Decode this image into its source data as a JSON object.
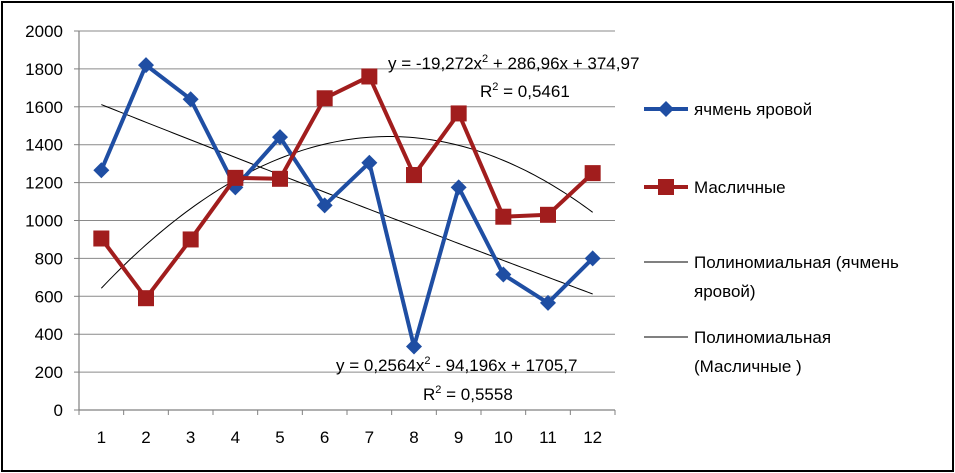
{
  "chart_data": {
    "type": "line",
    "x": [
      1,
      2,
      3,
      4,
      5,
      6,
      7,
      8,
      9,
      10,
      11,
      12
    ],
    "ylim": [
      0,
      2000
    ],
    "yticks": [
      0,
      200,
      400,
      600,
      800,
      1000,
      1200,
      1400,
      1600,
      1800,
      2000
    ],
    "grid": true,
    "legend_position": "right",
    "series": [
      {
        "name": "ячмень яровой",
        "color": "#1f4ea3",
        "marker": "diamond",
        "values": [
          1265,
          1820,
          1640,
          1175,
          1440,
          1080,
          1305,
          335,
          1175,
          715,
          565,
          800
        ]
      },
      {
        "name": "Масличные",
        "color": "#a11d1d",
        "marker": "square",
        "values": [
          905,
          590,
          900,
          1225,
          1220,
          1645,
          1760,
          1240,
          1565,
          1020,
          1030,
          1250
        ]
      }
    ],
    "trendlines": [
      {
        "legend": "Полиномиальная (ячмень яровой)",
        "legend_lines": [
          "Полиномиальная (ячмень",
          "яровой)"
        ],
        "equation": "y = 0,2564x² - 94,196x + 1705,7",
        "eq_parts": [
          "y = 0,2564x",
          "2",
          " - 94,196x + 1705,7"
        ],
        "r2_label": "R² = 0,5558",
        "r2_parts": [
          "R",
          "2",
          " = 0,5558"
        ],
        "coeffs": [
          0.2564,
          -94.196,
          1705.7
        ]
      },
      {
        "legend": "Полиномиальная (Масличные )",
        "legend_lines": [
          "Полиномиальная",
          "(Масличные )"
        ],
        "equation": "y = -19,272x² + 286,96x + 374,97",
        "eq_parts": [
          "y = -19,272x",
          "2",
          " + 286,96x + 374,97"
        ],
        "r2_label": "R² = 0,5461",
        "r2_parts": [
          "R",
          "2",
          " = 0,5461"
        ],
        "coeffs": [
          -19.272,
          286.96,
          374.97
        ]
      }
    ]
  }
}
